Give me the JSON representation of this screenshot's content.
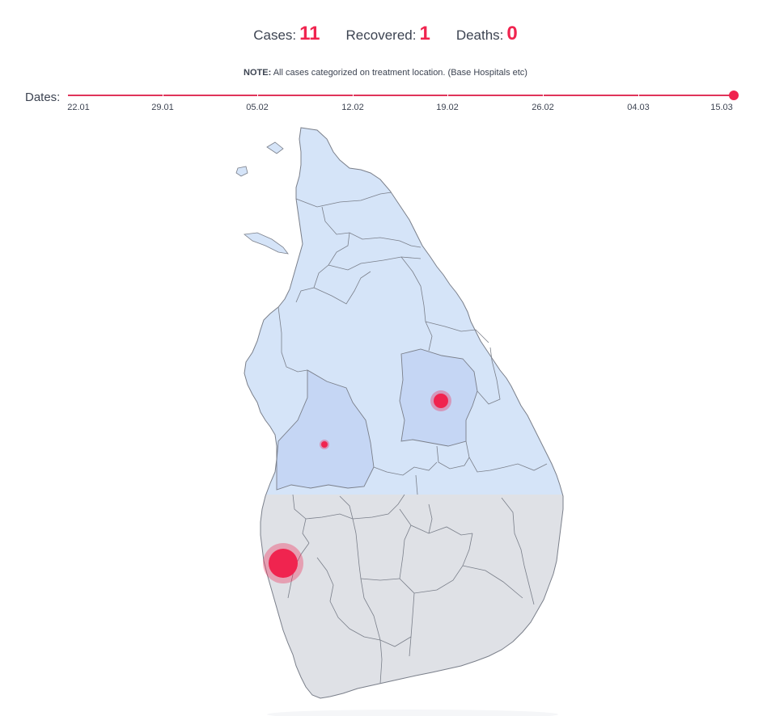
{
  "stats": {
    "cases_label": "Cases:",
    "cases_value": "11",
    "recovered_label": "Recovered:",
    "recovered_value": "1",
    "deaths_label": "Deaths:",
    "deaths_value": "0"
  },
  "note": {
    "bold": "NOTE:",
    "text": " All cases categorized on treatment location. (Base Hospitals etc)"
  },
  "timeline": {
    "label": "Dates:",
    "ticks": [
      "22.01",
      "29.01",
      "05.02",
      "12.02",
      "19.02",
      "26.02",
      "04.03",
      "15.03"
    ],
    "selected": "15.03"
  },
  "colors": {
    "accent": "#f0244f",
    "province_north": "#d5e4f8",
    "province_highlight": "#c5d6f4",
    "province_south": "#dfe1e6",
    "border": "#7a7f8a"
  },
  "map": {
    "case_markers": [
      {
        "name": "colombo-marker",
        "cases": 8
      },
      {
        "name": "polonnaruwa-marker",
        "cases": 2
      },
      {
        "name": "kurunegala-marker",
        "cases": 1
      }
    ]
  }
}
